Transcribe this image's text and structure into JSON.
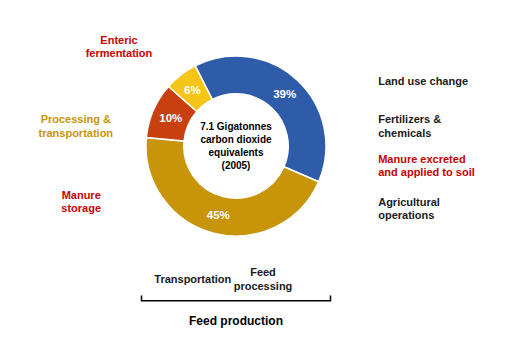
{
  "chart_data": {
    "type": "donut",
    "values": [
      39,
      45,
      10,
      6
    ],
    "value_labels": [
      "39%",
      "45%",
      "10%",
      "6%"
    ],
    "colors": [
      "#2e5ca8",
      "#c8940a",
      "#c84010",
      "#f5c518"
    ],
    "value_label_color": "white",
    "data_labels": true,
    "center_text": [
      "7.1 Gigatonnes",
      "carbon dioxide",
      "equivalents",
      "(2005)"
    ],
    "annotations": [
      {
        "text": "Land use change",
        "color": "#1a1a1a"
      },
      {
        "text": "Fertilizers &\nchemicals",
        "color": "#1a1a1a"
      },
      {
        "text": "Manure excreted\nand applied to soil",
        "color": "#cc0000"
      },
      {
        "text": "Agricultural\noperations",
        "color": "#1a1a1a"
      },
      {
        "text": "Feed\nprocessing",
        "color": "#1a1a1a"
      },
      {
        "text": "Transportation",
        "color": "#1a1a1a"
      },
      {
        "text": "Manure\nstorage",
        "color": "#cc0000"
      },
      {
        "text": "Processing &\ntransportation",
        "color": "#c8940a"
      },
      {
        "text": "Enteric\nfermentation",
        "color": "#cc0000"
      }
    ],
    "bracket_label": "Feed production"
  }
}
